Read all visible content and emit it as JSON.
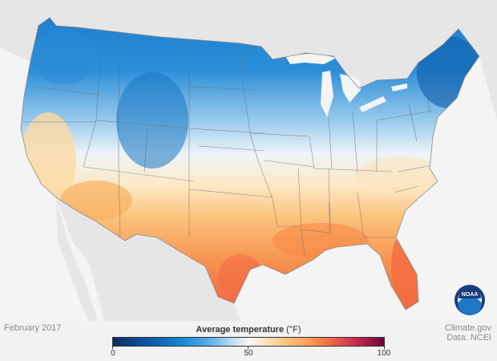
{
  "title": "Average temperature",
  "unit": "(°F)",
  "date": "February 2017",
  "credit": {
    "source": "Climate.gov",
    "data": "Data: NCEI"
  },
  "logo": "NOAA",
  "legend": {
    "min": 0,
    "mid": 50,
    "max": 100,
    "ticks": [
      "0",
      "50",
      "100"
    ],
    "colors": [
      "#0b2d5f",
      "#1c8ad6",
      "#f7f7f7",
      "#fcc57a",
      "#ef6a45",
      "#6a0538"
    ]
  }
}
